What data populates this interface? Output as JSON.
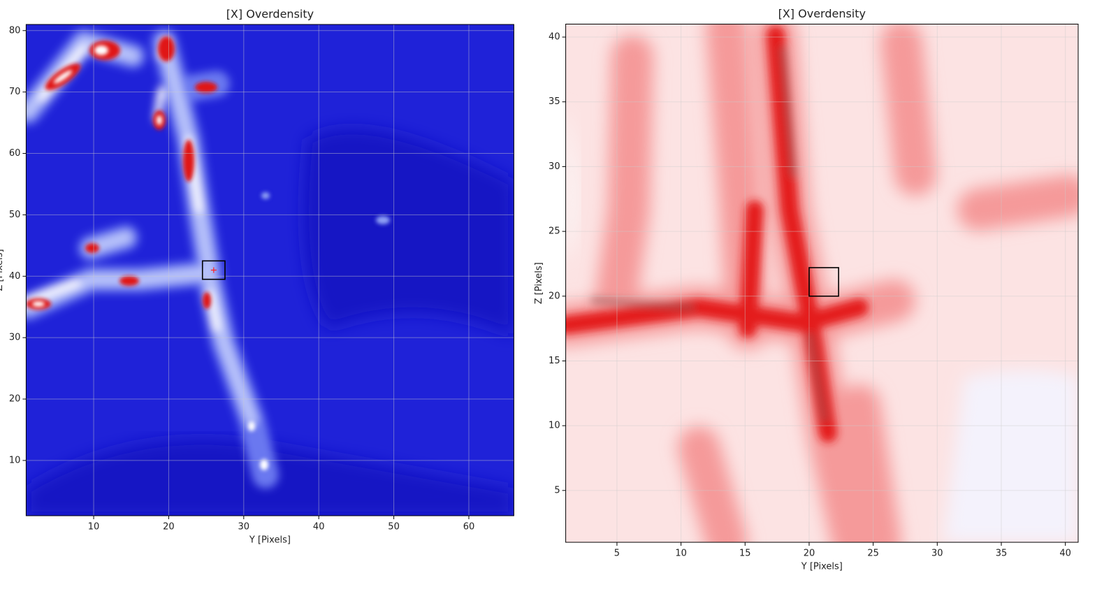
{
  "chart_data": [
    {
      "type": "contour",
      "title": "[X] Overdensity",
      "xlabel": "Y [Pixels]",
      "ylabel": "Z [Pixels]",
      "xlim": [
        1,
        66
      ],
      "xticks": [
        10,
        20,
        30,
        40,
        50,
        60
      ],
      "ylim": [
        1,
        81
      ],
      "yticks": [
        10,
        20,
        30,
        40,
        50,
        60,
        70,
        80
      ],
      "grid": true,
      "box": {
        "x": [
          24.5,
          27.5
        ],
        "y": [
          39.5,
          42.5
        ]
      },
      "marker": {
        "x": 26,
        "y": 41,
        "color": "#ff2020"
      }
    },
    {
      "type": "contour",
      "title": "[X] Overdensity",
      "xlabel": "Y [Pixels]",
      "ylabel": "Z [Pixels]",
      "xlim": [
        1,
        41
      ],
      "xticks": [
        5,
        10,
        15,
        20,
        25,
        30,
        35,
        40
      ],
      "ylim": [
        1,
        41
      ],
      "yticks": [
        5,
        10,
        15,
        20,
        25,
        30,
        35,
        40
      ],
      "grid": true,
      "box": {
        "x": [
          20,
          22.3
        ],
        "y": [
          20,
          22.2
        ]
      }
    }
  ]
}
